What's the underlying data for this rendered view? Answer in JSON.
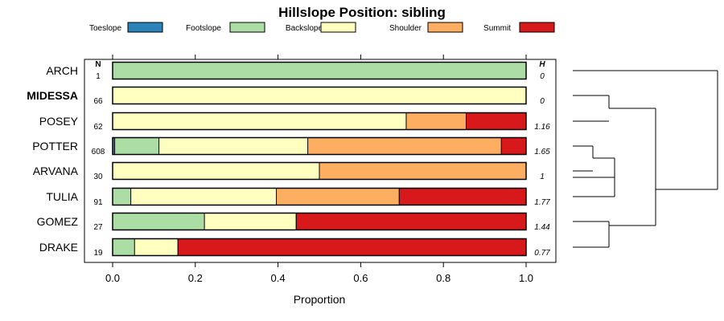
{
  "chart_data": {
    "type": "bar",
    "stacked": true,
    "orientation": "horizontal",
    "title": "Hillslope Position: sibling",
    "xlabel": "Proportion",
    "xlim": [
      0,
      1
    ],
    "x_ticks": [
      "0.0",
      "0.2",
      "0.4",
      "0.6",
      "0.8",
      "1.0"
    ],
    "n_header": "N",
    "h_header": "H",
    "legend_position": "top",
    "series": [
      {
        "name": "Toeslope",
        "color": "#2B83BA"
      },
      {
        "name": "Footslope",
        "color": "#ABDDA4"
      },
      {
        "name": "Backslope",
        "color": "#FFFFBF"
      },
      {
        "name": "Shoulder",
        "color": "#FDAE61"
      },
      {
        "name": "Summit",
        "color": "#D7191C"
      }
    ],
    "categories": [
      {
        "label": "ARCH",
        "bold": false,
        "n": "1",
        "h": "0",
        "values": [
          0,
          1.0,
          0,
          0,
          0
        ]
      },
      {
        "label": "MIDESSA",
        "bold": true,
        "n": "66",
        "h": "0",
        "values": [
          0,
          0,
          1.0,
          0,
          0
        ]
      },
      {
        "label": "POSEY",
        "bold": false,
        "n": "62",
        "h": "1.16",
        "values": [
          0,
          0,
          0.71,
          0.145,
          0.145
        ]
      },
      {
        "label": "POTTER",
        "bold": false,
        "n": "608",
        "h": "1.65",
        "values": [
          0.005,
          0.107,
          0.36,
          0.468,
          0.06
        ]
      },
      {
        "label": "ARVANA",
        "bold": false,
        "n": "30",
        "h": "1",
        "values": [
          0,
          0,
          0.5,
          0.5,
          0
        ]
      },
      {
        "label": "TULIA",
        "bold": false,
        "n": "91",
        "h": "1.77",
        "values": [
          0,
          0.044,
          0.352,
          0.297,
          0.307
        ]
      },
      {
        "label": "GOMEZ",
        "bold": false,
        "n": "27",
        "h": "1.44",
        "values": [
          0,
          0.222,
          0.222,
          0,
          0.556
        ]
      },
      {
        "label": "DRAKE",
        "bold": false,
        "n": "19",
        "h": "0.77",
        "values": [
          0,
          0.053,
          0.105,
          0,
          0.842
        ]
      }
    ]
  }
}
